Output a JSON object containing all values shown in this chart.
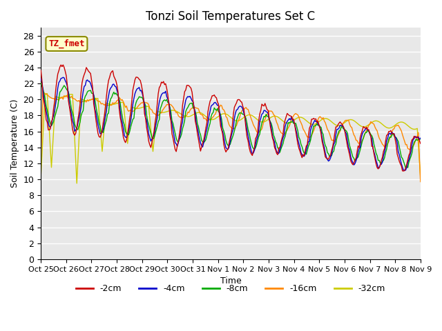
{
  "title": "Tonzi Soil Temperatures Set C",
  "xlabel": "Time",
  "ylabel": "Soil Temperature (C)",
  "ylim": [
    0,
    29
  ],
  "yticks": [
    0,
    2,
    4,
    6,
    8,
    10,
    12,
    14,
    16,
    18,
    20,
    22,
    24,
    26,
    28
  ],
  "legend_labels": [
    "-2cm",
    "-4cm",
    "-8cm",
    "-16cm",
    "-32cm"
  ],
  "legend_colors": [
    "#cc0000",
    "#0000cc",
    "#00aa00",
    "#ff8800",
    "#cccc00"
  ],
  "annotation_text": "TZ_fmet",
  "annotation_color": "#cc0000",
  "annotation_bg": "#ffffcc",
  "xtick_labels": [
    "Oct 25",
    "Oct 26",
    "Oct 27",
    "Oct 28",
    "Oct 29",
    "Oct 30",
    "Oct 31",
    "Nov 1",
    "Nov 2",
    "Nov 3",
    "Nov 4",
    "Nov 5",
    "Nov 6",
    "Nov 7",
    "Nov 8",
    "Nov 9"
  ]
}
